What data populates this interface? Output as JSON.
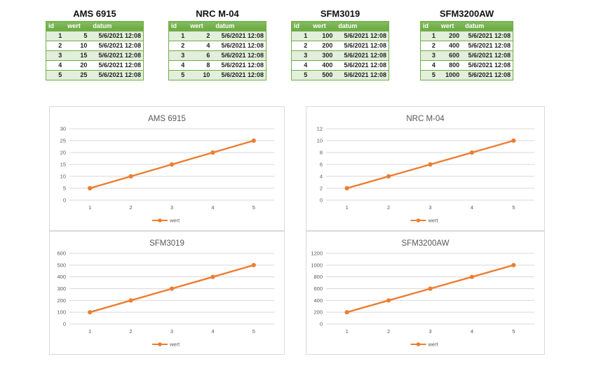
{
  "colors": {
    "accent_orange": "#ED7D31",
    "table_header_green": "#70AD47",
    "table_band_green": "#E2EFDA",
    "table_border_green": "#70AD47",
    "gridline_gray": "#D9D9D9",
    "axis_label_gray": "#595959",
    "chart_border_gray": "#D9D9D9"
  },
  "tables": [
    {
      "title": "AMS 6915",
      "columns": [
        "id",
        "wert",
        "datum"
      ],
      "rows": [
        [
          "1",
          "5",
          "5/6/2021 12:08"
        ],
        [
          "2",
          "10",
          "5/6/2021 12:08"
        ],
        [
          "3",
          "15",
          "5/6/2021 12:08"
        ],
        [
          "4",
          "20",
          "5/6/2021 12:08"
        ],
        [
          "5",
          "25",
          "5/6/2021 12:08"
        ]
      ]
    },
    {
      "title": "NRC M-04",
      "columns": [
        "id",
        "wert",
        "datum"
      ],
      "rows": [
        [
          "1",
          "2",
          "5/6/2021 12:08"
        ],
        [
          "2",
          "4",
          "5/6/2021 12:08"
        ],
        [
          "3",
          "6",
          "5/6/2021 12:08"
        ],
        [
          "4",
          "8",
          "5/6/2021 12:08"
        ],
        [
          "5",
          "10",
          "5/6/2021 12:08"
        ]
      ]
    },
    {
      "title": "SFM3019",
      "columns": [
        "id",
        "wert",
        "datum"
      ],
      "rows": [
        [
          "1",
          "100",
          "5/6/2021 12:08"
        ],
        [
          "2",
          "200",
          "5/6/2021 12:08"
        ],
        [
          "3",
          "300",
          "5/6/2021 12:08"
        ],
        [
          "4",
          "400",
          "5/6/2021 12:08"
        ],
        [
          "5",
          "500",
          "5/6/2021 12:08"
        ]
      ]
    },
    {
      "title": "SFM3200AW",
      "columns": [
        "id",
        "wert",
        "datum"
      ],
      "rows": [
        [
          "1",
          "200",
          "5/6/2021 12:08"
        ],
        [
          "2",
          "400",
          "5/6/2021 12:08"
        ],
        [
          "3",
          "600",
          "5/6/2021 12:08"
        ],
        [
          "4",
          "800",
          "5/6/2021 12:08"
        ],
        [
          "5",
          "1000",
          "5/6/2021 12:08"
        ]
      ]
    }
  ],
  "chart_data": [
    {
      "type": "line",
      "title": "AMS 6915",
      "x": [
        1,
        2,
        3,
        4,
        5
      ],
      "series": [
        {
          "name": "wert",
          "values": [
            5,
            10,
            15,
            20,
            25
          ]
        }
      ],
      "xlabel": "",
      "ylabel": "",
      "ylim": [
        0,
        30
      ],
      "ytick_step": 5,
      "grid": true,
      "legend_position": "bottom"
    },
    {
      "type": "line",
      "title": "NRC M-04",
      "x": [
        1,
        2,
        3,
        4,
        5
      ],
      "series": [
        {
          "name": "wert",
          "values": [
            2,
            4,
            6,
            8,
            10
          ]
        }
      ],
      "xlabel": "",
      "ylabel": "",
      "ylim": [
        0,
        12
      ],
      "ytick_step": 2,
      "grid": true,
      "legend_position": "bottom"
    },
    {
      "type": "line",
      "title": "SFM3019",
      "x": [
        1,
        2,
        3,
        4,
        5
      ],
      "series": [
        {
          "name": "wert",
          "values": [
            100,
            200,
            300,
            400,
            500
          ]
        }
      ],
      "xlabel": "",
      "ylabel": "",
      "ylim": [
        0,
        600
      ],
      "ytick_step": 100,
      "grid": true,
      "legend_position": "bottom"
    },
    {
      "type": "line",
      "title": "SFM3200AW",
      "x": [
        1,
        2,
        3,
        4,
        5
      ],
      "series": [
        {
          "name": "wert",
          "values": [
            200,
            400,
            600,
            800,
            1000
          ]
        }
      ],
      "xlabel": "",
      "ylabel": "",
      "ylim": [
        0,
        1200
      ],
      "ytick_step": 200,
      "grid": true,
      "legend_position": "bottom"
    }
  ]
}
